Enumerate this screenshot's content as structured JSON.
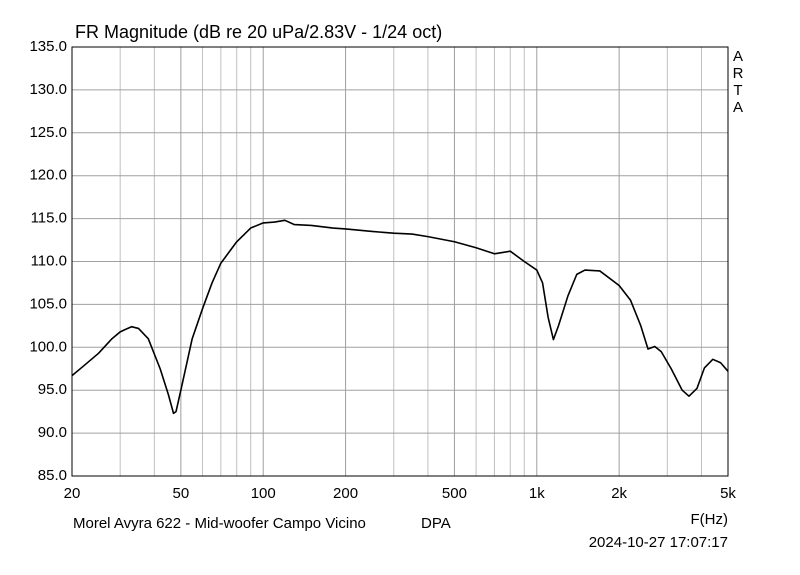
{
  "chart_data": {
    "type": "line",
    "title": "FR Magnitude (dB re 20 uPa/2.83V - 1/24 oct)",
    "watermark": "ARTA",
    "x_label": "F(Hz)",
    "footer_left": "Morel Avyra 622 - Mid-woofer Campo Vicino",
    "footer_mid": "DPA",
    "timestamp": "2024-10-27  17:07:17",
    "x_log": true,
    "grid": true,
    "xlim": [
      20,
      5000
    ],
    "ylim": [
      85,
      135
    ],
    "xticks": [
      20,
      50,
      100,
      200,
      500,
      {
        "value": 1000,
        "label": "1k"
      },
      {
        "value": 2000,
        "label": "2k"
      },
      {
        "value": 5000,
        "label": "5k"
      }
    ],
    "x_minor_grid": [
      30,
      40,
      60,
      70,
      80,
      90,
      300,
      400,
      600,
      700,
      800,
      900,
      3000,
      4000
    ],
    "yticks": [
      {
        "value": 85,
        "label": "85.0"
      },
      {
        "value": 90,
        "label": "90.0"
      },
      {
        "value": 95,
        "label": "95.0"
      },
      {
        "value": 100,
        "label": "100.0"
      },
      {
        "value": 105,
        "label": "105.0"
      },
      {
        "value": 110,
        "label": "110.0"
      },
      {
        "value": 115,
        "label": "115.0"
      },
      {
        "value": 120,
        "label": "120.0"
      },
      {
        "value": 125,
        "label": "125.0"
      },
      {
        "value": 130,
        "label": "130.0"
      },
      {
        "value": 135,
        "label": "135.0"
      }
    ],
    "x": [
      20,
      22,
      25,
      28,
      30,
      33,
      35,
      38,
      42,
      45,
      47,
      48,
      50,
      55,
      60,
      65,
      70,
      80,
      90,
      100,
      110,
      120,
      130,
      150,
      180,
      200,
      250,
      300,
      350,
      400,
      500,
      600,
      700,
      800,
      900,
      1000,
      1050,
      1100,
      1150,
      1200,
      1300,
      1400,
      1500,
      1700,
      2000,
      2200,
      2400,
      2550,
      2700,
      2850,
      3100,
      3400,
      3600,
      3850,
      4100,
      4400,
      4700,
      5000
    ],
    "series": [
      {
        "color": "#000000",
        "values": [
          96.7,
          97.8,
          99.3,
          101.0,
          101.8,
          102.4,
          102.2,
          101.0,
          97.5,
          94.5,
          92.3,
          92.5,
          95.0,
          101.0,
          104.5,
          107.5,
          109.8,
          112.3,
          113.9,
          114.5,
          114.6,
          114.8,
          114.3,
          114.2,
          113.9,
          113.8,
          113.5,
          113.3,
          113.2,
          112.9,
          112.3,
          111.6,
          110.9,
          111.2,
          110.0,
          109.0,
          107.5,
          103.5,
          100.9,
          102.5,
          106.0,
          108.5,
          109.0,
          108.9,
          107.2,
          105.5,
          102.5,
          99.8,
          100.1,
          99.5,
          97.5,
          95.0,
          94.3,
          95.2,
          97.6,
          98.6,
          98.2,
          97.2
        ]
      }
    ]
  }
}
